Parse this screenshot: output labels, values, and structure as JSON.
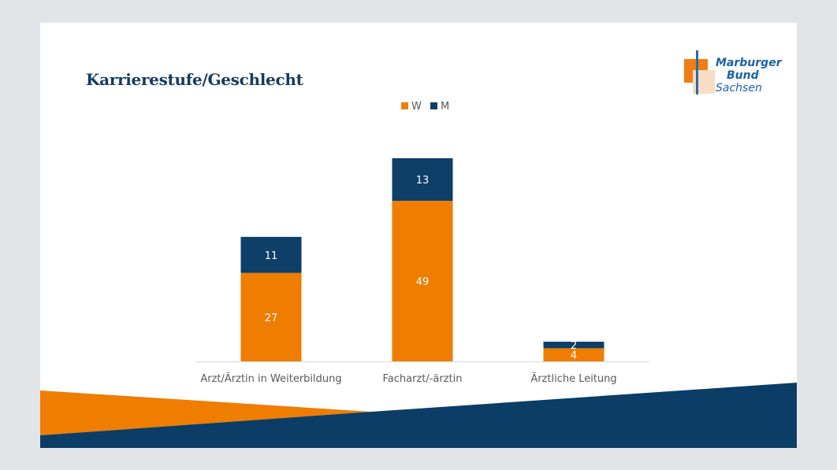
{
  "slide": {
    "title": "Karrierestufe/Geschlecht",
    "logo": {
      "line1": "Marburger",
      "line2": "Bund",
      "line3": "Sachsen"
    }
  },
  "colors": {
    "W": "#ef7d00",
    "M": "#0d3f68",
    "title": "#163a5f",
    "axis_text": "#595959",
    "baseline": "#d9d9d9",
    "label_on_bar": "#ffffff"
  },
  "chart_data": {
    "type": "bar",
    "stacked": true,
    "title": "",
    "xlabel": "",
    "ylabel": "",
    "categories": [
      "Arzt/Ärztin in Weiterbildung",
      "Facharzt/-ärztin",
      "Ärztliche Leitung"
    ],
    "series": [
      {
        "name": "W",
        "values": [
          27,
          49,
          4
        ]
      },
      {
        "name": "M",
        "values": [
          11,
          13,
          2
        ]
      }
    ],
    "ylim": [
      0,
      62
    ],
    "grid": false,
    "y_axis_visible": false,
    "data_labels": true,
    "legend": "top-center"
  }
}
